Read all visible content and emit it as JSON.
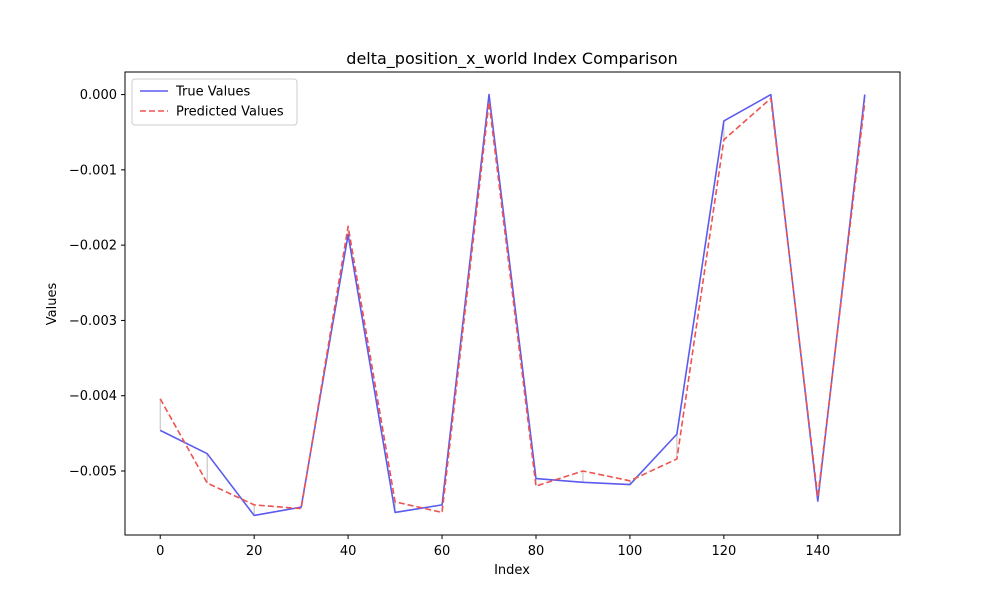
{
  "chart_data": {
    "type": "line",
    "title": "delta_position_x_world Index Comparison",
    "xlabel": "Index",
    "ylabel": "Values",
    "x": [
      0,
      10,
      20,
      30,
      40,
      50,
      60,
      70,
      80,
      90,
      100,
      110,
      120,
      130,
      140,
      150
    ],
    "xticks": [
      0,
      20,
      40,
      60,
      80,
      100,
      120,
      140
    ],
    "xtick_labels": [
      "0",
      "20",
      "40",
      "60",
      "80",
      "100",
      "120",
      "140"
    ],
    "yticks": [
      0,
      -0.001,
      -0.002,
      -0.003,
      -0.004,
      -0.005
    ],
    "ytick_labels": [
      "0.000",
      "−0.001",
      "−0.002",
      "−0.003",
      "−0.004",
      "−0.005"
    ],
    "xlim": [
      -7.5,
      157.5
    ],
    "ylim": [
      -0.00585,
      0.0003
    ],
    "grid": false,
    "legend_position": "top-left",
    "series": [
      {
        "name": "True Values",
        "color": "#5b5bf0",
        "style": "solid",
        "values": [
          -0.00446,
          -0.00477,
          -0.00559,
          -0.00548,
          -0.00186,
          -0.00555,
          -0.00545,
          0.0,
          -0.0051,
          -0.00515,
          -0.00518,
          -0.00451,
          -0.00035,
          0.0,
          -0.0054,
          0.0
        ]
      },
      {
        "name": "Predicted Values",
        "color": "#ef5350",
        "style": "dashed",
        "values": [
          -0.00404,
          -0.00516,
          -0.00545,
          -0.0055,
          -0.00175,
          -0.00541,
          -0.00555,
          -0.0001,
          -0.0052,
          -0.005,
          -0.00513,
          -0.00484,
          -0.0006,
          -5e-05,
          -0.00535,
          -0.0001
        ]
      }
    ]
  }
}
